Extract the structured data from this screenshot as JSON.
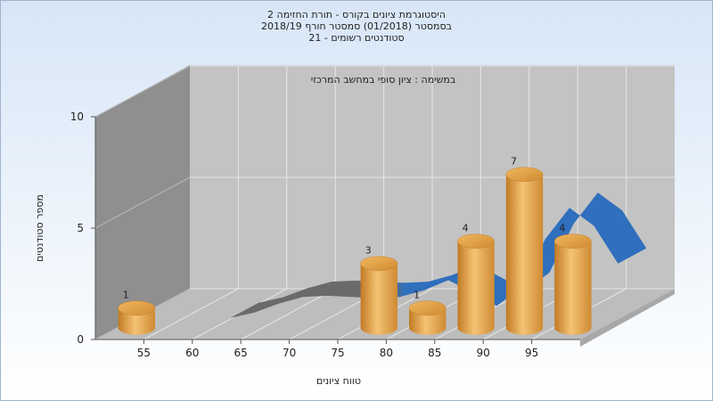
{
  "header": {
    "title_lines": [
      "היסטוגרמת ציונים בקורס - תורת החזימה 2",
      "בסמסטר  (01/2018)  סמסטר חורף  2018/19",
      "סטודנטים רשומים - 21"
    ]
  },
  "chart_data": {
    "type": "bar",
    "title": "היסטוגרמת ציונים בקורס - תורת החזימה 2",
    "subtitle": "במשימה : ציון סופי במחשב המרכזי",
    "xlabel": "טווח ציונים",
    "ylabel": "מספר סטודנטים",
    "x_ticks": [
      "55",
      "60",
      "65",
      "70",
      "75",
      "80",
      "85",
      "90",
      "95"
    ],
    "y_ticks": [
      "0",
      "5",
      "10"
    ],
    "ylim": [
      0,
      10
    ],
    "bars": [
      {
        "bin": "50-55",
        "value": 1
      },
      {
        "bin": "75-80",
        "value": 3
      },
      {
        "bin": "80-85",
        "value": 1
      },
      {
        "bin": "85-90",
        "value": 4
      },
      {
        "bin": "90-95",
        "value": 7
      },
      {
        "bin": "95-100",
        "value": 4
      }
    ],
    "curve": {
      "x": [
        60,
        62.5,
        65,
        67.5,
        70,
        72.5,
        75,
        77.5,
        80,
        82.5,
        85,
        87.5,
        90,
        92.5,
        95,
        97.5,
        100
      ],
      "y": [
        0.05,
        0.3,
        0.7,
        1.0,
        1.05,
        1.0,
        0.95,
        1.0,
        1.3,
        1.75,
        1.2,
        0.6,
        1.4,
        3.6,
        5.0,
        4.2,
        2.5
      ]
    },
    "grid": true,
    "colors": {
      "bar": "#e3a548",
      "curve": "#2f6fbd",
      "curve_shadow": "#6f6f6f"
    }
  }
}
